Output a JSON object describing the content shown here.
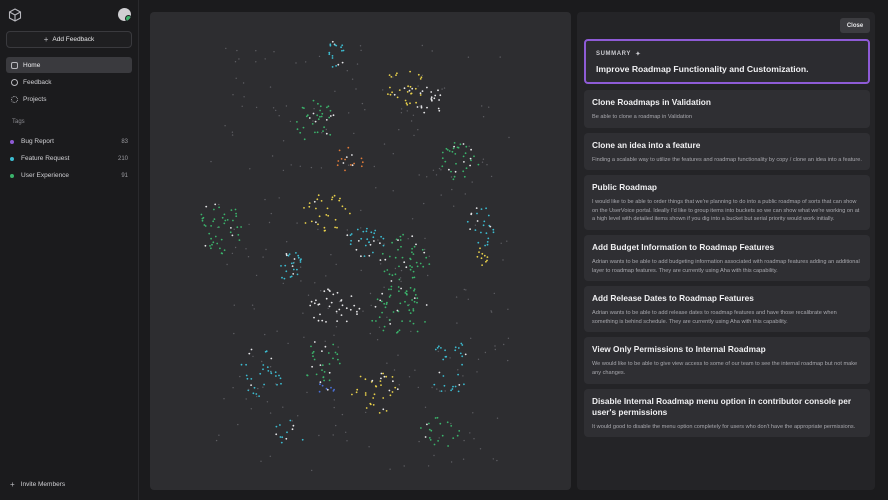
{
  "sidebar": {
    "add_feedback_label": "Add Feedback",
    "nav": [
      {
        "label": "Home",
        "icon": "home-icon"
      },
      {
        "label": "Feedback",
        "icon": "users-icon"
      },
      {
        "label": "Projects",
        "icon": "gear-icon"
      }
    ],
    "tags_title": "Tags",
    "tags": [
      {
        "name": "Bug Report",
        "count": "83",
        "color": "#8e5bd6"
      },
      {
        "name": "Feature Request",
        "count": "210",
        "color": "#3cbcd1"
      },
      {
        "name": "User Experience",
        "count": "91",
        "color": "#3bb36b"
      }
    ],
    "invite_label": "Invite Members"
  },
  "panel": {
    "close_label": "Close",
    "summary_label": "SUMMARY",
    "summary_title": "Improve Roadmap Functionality and Customization.",
    "cards": [
      {
        "title": "Clone Roadmaps in Validation",
        "desc": "Be able to clone a roadmap in Validation"
      },
      {
        "title": "Clone an idea into a feature",
        "desc": "Finding a scalable way to utilize the features and roadmap functionality by copy / clone an idea into a feature."
      },
      {
        "title": "Public Roadmap",
        "desc": "I would like to be able to order things that we're planning to do into a public roadmap of sorts that can show on the UserVoice portal. Ideally I'd like to group items into buckets so we can show what we're working on at a high level with detailed items shown if you dig into a bucket but serial priority would work initially."
      },
      {
        "title": "Add Budget Information to Roadmap Features",
        "desc": "Adrian wants to be able to add budgeting information associated with roadmap features adding an additional layer to roadmap features. They are currently using Aha with this capability."
      },
      {
        "title": "Add Release Dates to Roadmap Features",
        "desc": "Adrian wants to be able to add release dates to roadmap features and have those recalibrate when something is behind schedule. They are currently using Aha with this capability."
      },
      {
        "title": "View Only Permissions to Internal Roadmap",
        "desc": "We would like to be able to give view access to some of our team to see the internal roadmap but not make any changes."
      },
      {
        "title": "Disable Internal Roadmap menu option in contributor console per user's permissions",
        "desc": "It would good to disable the menu option completely for users who don't have the appropriate permissions."
      }
    ]
  },
  "plot_colors": [
    "#3bb36b",
    "#3cbcd1",
    "#8cc43f",
    "#e8d04a",
    "#e07b39",
    "#4a6fd6",
    "#e6e6e8",
    "#5e5e63"
  ]
}
